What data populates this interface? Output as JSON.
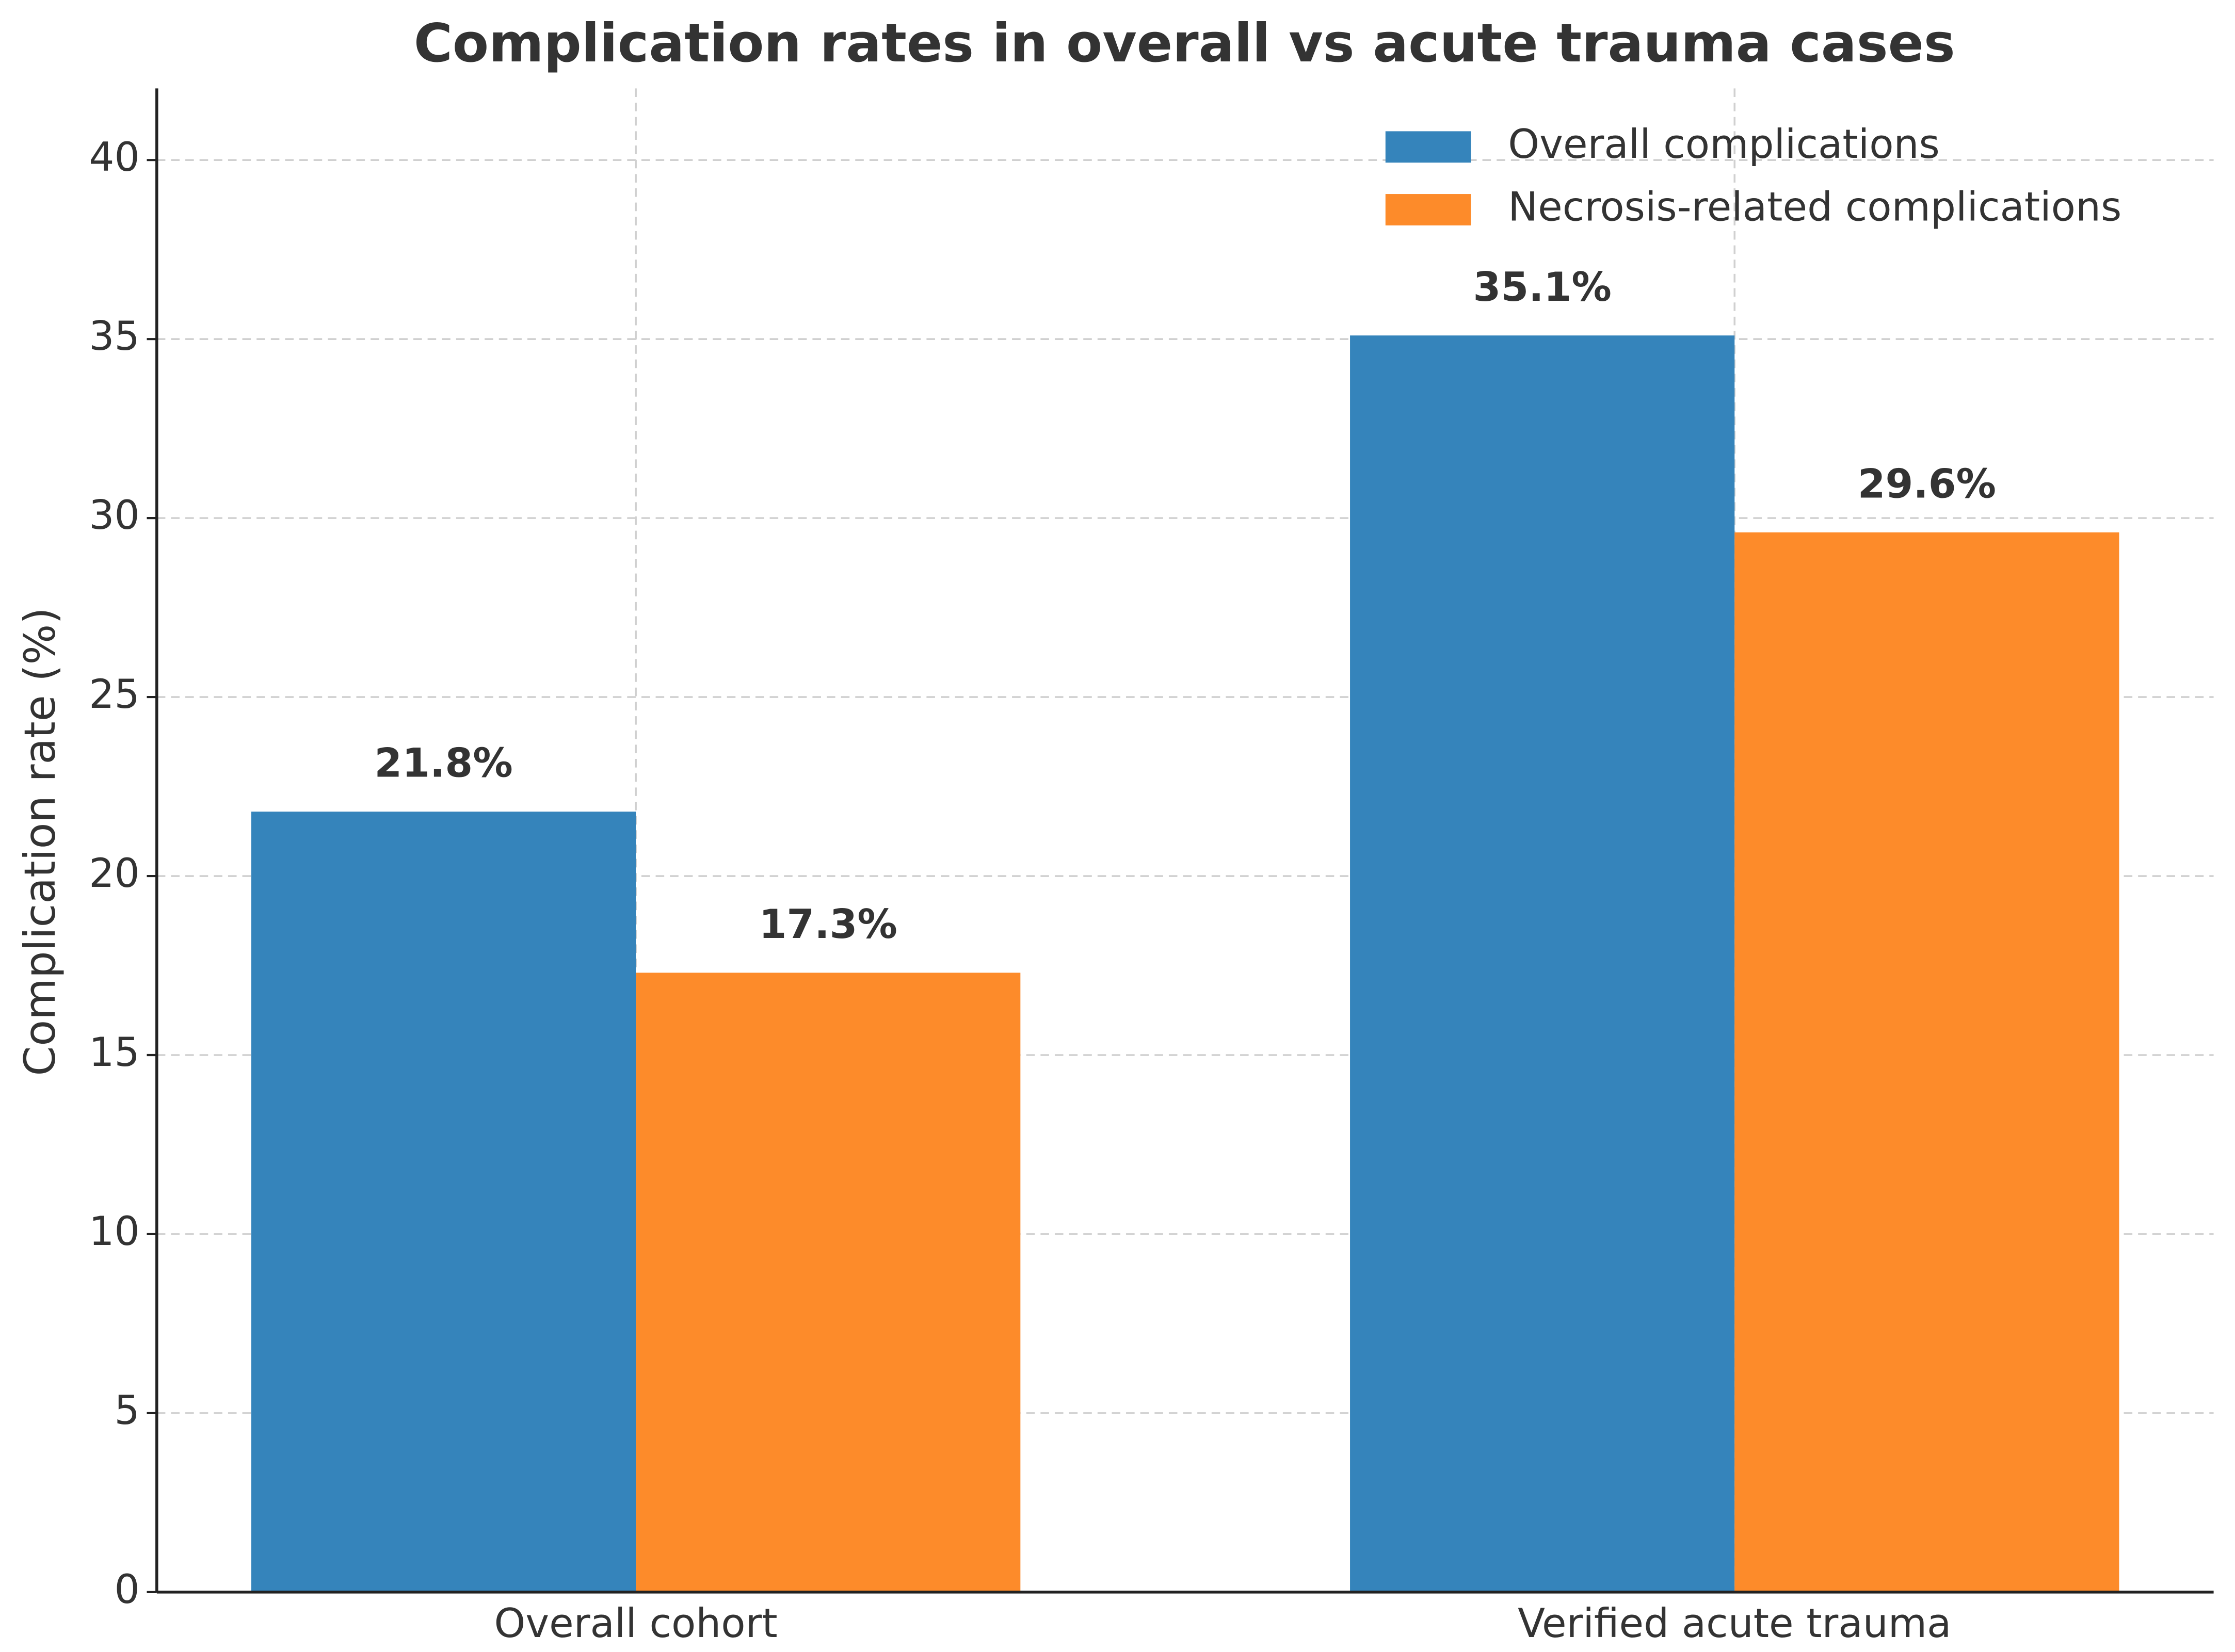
{
  "chart_data": {
    "type": "bar",
    "title": "Complication rates in overall vs acute trauma cases",
    "y_label": "Complication rate (%)",
    "categories": [
      "Overall cohort",
      "Verified acute trauma"
    ],
    "series": [
      {
        "name": "Overall complications",
        "color": "#3584bb",
        "values": [
          21.8,
          35.1
        ],
        "value_labels": [
          "21.8%",
          "35.1%"
        ]
      },
      {
        "name": "Necrosis-related complications",
        "color": "#fd8b2a",
        "values": [
          17.3,
          29.6
        ],
        "value_labels": [
          "17.3%",
          "29.6%"
        ]
      }
    ],
    "ylim": [
      0,
      42
    ],
    "yticks": [
      0,
      5,
      10,
      15,
      20,
      25,
      30,
      35,
      40
    ],
    "grid": true,
    "legend": "upper right"
  }
}
